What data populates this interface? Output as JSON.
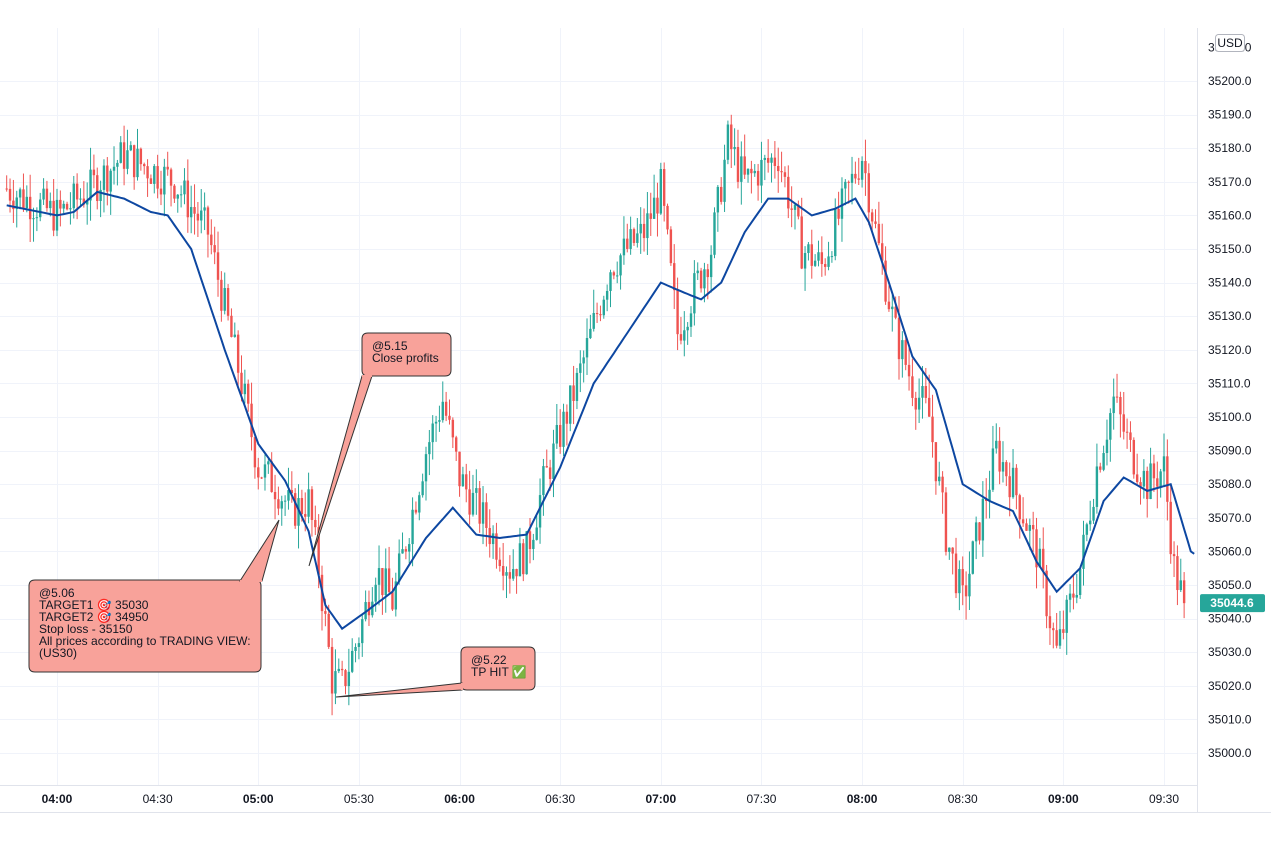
{
  "currency_button": "USD",
  "last_price": "35044.6",
  "colors": {
    "up": "#26a69a",
    "down": "#ef5350",
    "ma": "#0d47a1",
    "callout_fill": "#f8a29a",
    "callout_border": "#333333",
    "grid": "#f0f3fa",
    "price_badge": "#26a69a"
  },
  "chart_data": {
    "type": "candlestick",
    "ylim": [
      34990,
      35220
    ],
    "y_ticks": [
      "35000.0",
      "35010.0",
      "35020.0",
      "35030.0",
      "35040.0",
      "35050.0",
      "35060.0",
      "35070.0",
      "35080.0",
      "35090.0",
      "35100.0",
      "35110.0",
      "35120.0",
      "35130.0",
      "35140.0",
      "35150.0",
      "35160.0",
      "35170.0",
      "35180.0",
      "35190.0",
      "35200.0"
    ],
    "x_ticks": [
      {
        "label": "04:00",
        "major": true
      },
      {
        "label": "04:30",
        "major": false
      },
      {
        "label": "05:00",
        "major": true
      },
      {
        "label": "05:30",
        "major": false
      },
      {
        "label": "06:00",
        "major": true
      },
      {
        "label": "06:30",
        "major": false
      },
      {
        "label": "07:00",
        "major": true
      },
      {
        "label": "07:30",
        "major": false
      },
      {
        "label": "08:00",
        "major": true
      },
      {
        "label": "08:30",
        "major": false
      },
      {
        "label": "09:00",
        "major": true
      },
      {
        "label": "09:30",
        "major": false
      }
    ],
    "x_range": [
      "03:45",
      "09:45"
    ],
    "price_anchors": [
      [
        "03:45",
        35168
      ],
      [
        "04:00",
        35160
      ],
      [
        "04:10",
        35168
      ],
      [
        "04:20",
        35178
      ],
      [
        "04:35",
        35170
      ],
      [
        "04:45",
        35155
      ],
      [
        "04:55",
        35110
      ],
      [
        "05:00",
        35085
      ],
      [
        "05:05",
        35080
      ],
      [
        "05:10",
        35072
      ],
      [
        "05:15",
        35075
      ],
      [
        "05:18",
        35055
      ],
      [
        "05:22",
        35022
      ],
      [
        "05:25",
        35020
      ],
      [
        "05:30",
        35035
      ],
      [
        "05:35",
        35055
      ],
      [
        "05:40",
        35045
      ],
      [
        "05:50",
        35090
      ],
      [
        "05:55",
        35105
      ],
      [
        "06:00",
        35082
      ],
      [
        "06:08",
        35068
      ],
      [
        "06:15",
        35055
      ],
      [
        "06:20",
        35060
      ],
      [
        "06:25",
        35080
      ],
      [
        "06:35",
        35110
      ],
      [
        "06:45",
        35145
      ],
      [
        "06:55",
        35155
      ],
      [
        "07:00",
        35168
      ],
      [
        "07:05",
        35125
      ],
      [
        "07:10",
        35138
      ],
      [
        "07:15",
        35150
      ],
      [
        "07:20",
        35182
      ],
      [
        "07:25",
        35170
      ],
      [
        "07:35",
        35178
      ],
      [
        "07:42",
        35150
      ],
      [
        "07:48",
        35145
      ],
      [
        "07:55",
        35165
      ],
      [
        "08:00",
        35178
      ],
      [
        "08:05",
        35150
      ],
      [
        "08:10",
        35125
      ],
      [
        "08:15",
        35110
      ],
      [
        "08:20",
        35100
      ],
      [
        "08:25",
        35065
      ],
      [
        "08:30",
        35045
      ],
      [
        "08:35",
        35068
      ],
      [
        "08:40",
        35090
      ],
      [
        "08:45",
        35080
      ],
      [
        "08:52",
        35060
      ],
      [
        "08:58",
        35030
      ],
      [
        "09:05",
        35055
      ],
      [
        "09:10",
        35085
      ],
      [
        "09:15",
        35105
      ],
      [
        "09:20",
        35090
      ],
      [
        "09:25",
        35080
      ],
      [
        "09:30",
        35085
      ],
      [
        "09:33",
        35055
      ],
      [
        "09:36",
        35044.6
      ]
    ],
    "moving_average": {
      "anchors": [
        [
          "03:45",
          35163
        ],
        [
          "04:00",
          35160
        ],
        [
          "04:05",
          35161
        ],
        [
          "04:12",
          35167
        ],
        [
          "04:20",
          35165
        ],
        [
          "04:28",
          35161
        ],
        [
          "04:33",
          35160
        ],
        [
          "04:40",
          35150
        ],
        [
          "04:50",
          35120
        ],
        [
          "05:00",
          35092
        ],
        [
          "05:08",
          35081
        ],
        [
          "05:15",
          35066
        ],
        [
          "05:20",
          35044
        ],
        [
          "05:25",
          35037
        ],
        [
          "05:32",
          35042
        ],
        [
          "05:40",
          35048
        ],
        [
          "05:50",
          35064
        ],
        [
          "05:58",
          35073
        ],
        [
          "06:05",
          35065
        ],
        [
          "06:12",
          35064
        ],
        [
          "06:20",
          35065
        ],
        [
          "06:30",
          35085
        ],
        [
          "06:40",
          35110
        ],
        [
          "06:50",
          35125
        ],
        [
          "07:00",
          35140
        ],
        [
          "07:07",
          35137
        ],
        [
          "07:12",
          35135
        ],
        [
          "07:18",
          35140
        ],
        [
          "07:25",
          35155
        ],
        [
          "07:32",
          35165
        ],
        [
          "07:38",
          35165
        ],
        [
          "07:45",
          35160
        ],
        [
          "07:52",
          35162
        ],
        [
          "07:58",
          35165
        ],
        [
          "08:02",
          35158
        ],
        [
          "08:08",
          35140
        ],
        [
          "08:15",
          35118
        ],
        [
          "08:22",
          35108
        ],
        [
          "08:30",
          35080
        ],
        [
          "08:38",
          35075
        ],
        [
          "08:45",
          35072
        ],
        [
          "08:52",
          35057
        ],
        [
          "08:58",
          35048
        ],
        [
          "09:05",
          35055
        ],
        [
          "09:12",
          35075
        ],
        [
          "09:18",
          35082
        ],
        [
          "09:25",
          35078
        ],
        [
          "09:32",
          35080
        ],
        [
          "09:38",
          35060
        ],
        [
          "09:45",
          35055
        ]
      ]
    }
  },
  "annotations": [
    {
      "id": "entry",
      "lines": [
        "@5.06",
        "TARGET1 🎯 35030",
        "TARGET2 🎯 34950",
        "Stop loss  - 35150",
        "All prices according to TRADING VIEW:",
        "(US30)"
      ]
    },
    {
      "id": "close",
      "lines": [
        "@5.15",
        "Close profits"
      ]
    },
    {
      "id": "tp",
      "lines": [
        "@5.22",
        "TP HIT ✅"
      ]
    }
  ]
}
